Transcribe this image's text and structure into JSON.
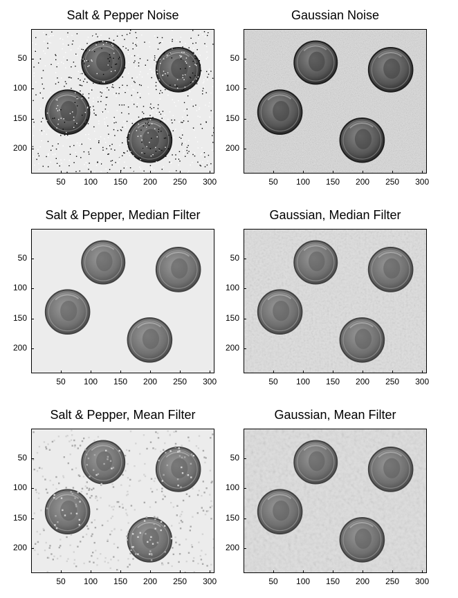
{
  "figure": {
    "panels": [
      {
        "id": "sp-noise",
        "title": "Salt & Pepper Noise",
        "noise": "saltpepper",
        "filter": "none"
      },
      {
        "id": "g-noise",
        "title": "Gaussian Noise",
        "noise": "gaussian",
        "filter": "none"
      },
      {
        "id": "sp-median",
        "title": "Salt & Pepper, Median Filter",
        "noise": "saltpepper",
        "filter": "median"
      },
      {
        "id": "g-median",
        "title": "Gaussian, Median Filter",
        "noise": "gaussian",
        "filter": "median"
      },
      {
        "id": "sp-mean",
        "title": "Salt & Pepper, Mean Filter",
        "noise": "saltpepper",
        "filter": "mean"
      },
      {
        "id": "g-mean",
        "title": "Gaussian, Mean Filter",
        "noise": "gaussian",
        "filter": "mean"
      }
    ],
    "axes": {
      "xticks": [
        50,
        100,
        150,
        200,
        250,
        300
      ],
      "yticks": [
        50,
        100,
        150,
        200
      ],
      "xlim": [
        0,
        308
      ],
      "ylim": [
        0,
        242
      ]
    },
    "coins": [
      {
        "cx": 120,
        "cy": 55,
        "r": 36
      },
      {
        "cx": 246,
        "cy": 67,
        "r": 37
      },
      {
        "cx": 60,
        "cy": 138,
        "r": 37
      },
      {
        "cx": 198,
        "cy": 185,
        "r": 37
      }
    ]
  }
}
